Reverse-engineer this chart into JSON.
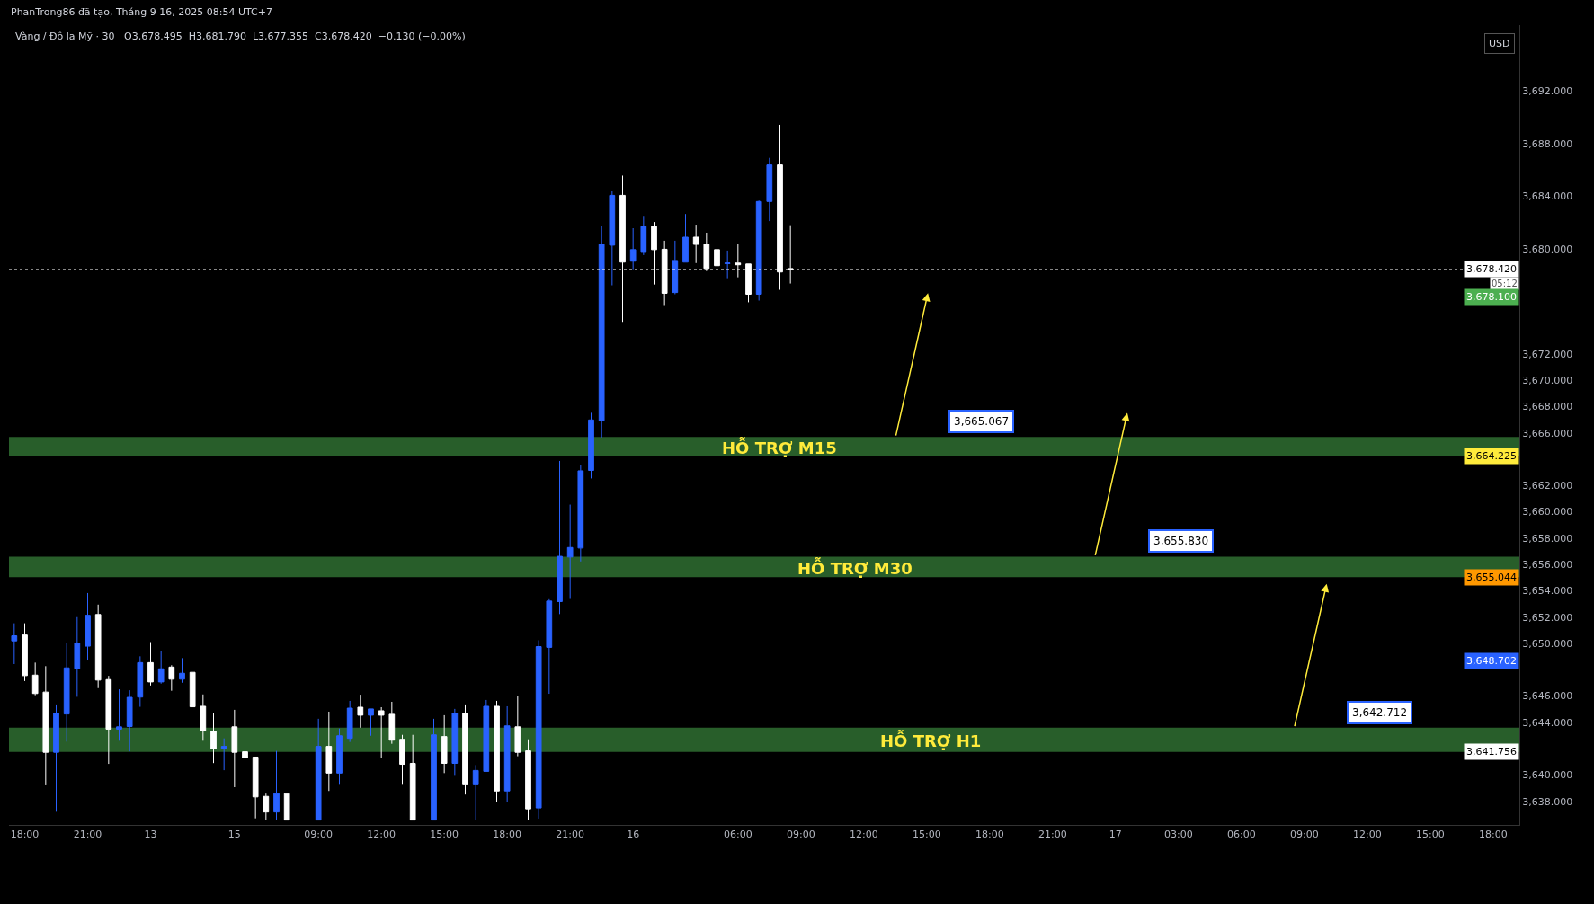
{
  "chart_data": {
    "type": "candlestick",
    "title": "PhanTrong86 đã tạo, Tháng 9 16, 2025 08:54 UTC+7",
    "subtitle": "Vàng / Đô la Mỹ · 30   O3,678.495  H3,681.790  L3,677.355  C3,678.420  −0.130 (−0.00%)",
    "categories": [
      null,
      "18:00",
      null,
      null,
      null,
      null,
      null,
      "21:00",
      null,
      null,
      null,
      null,
      null,
      "13",
      null,
      null,
      null,
      null,
      null,
      null,
      null,
      "15",
      null,
      null,
      null,
      null,
      null,
      null,
      null,
      "09:00",
      null,
      null,
      null,
      null,
      null,
      "12:00",
      null,
      null,
      null,
      null,
      null,
      "15:00",
      null,
      null,
      null,
      null,
      null,
      "18:00",
      null,
      null,
      null,
      null,
      null,
      "21:00",
      null,
      null,
      null,
      null,
      null,
      "16",
      null,
      null,
      null,
      null,
      null,
      null,
      null,
      null,
      null,
      "06:00",
      null,
      null,
      null,
      null,
      null,
      "09:00",
      null,
      null,
      null,
      null,
      null,
      "12:00",
      null,
      null,
      null,
      null,
      null,
      "15:00",
      null,
      null,
      null,
      null,
      null,
      "18:00",
      null,
      null,
      null,
      null,
      null,
      "21:00",
      null,
      null,
      null,
      null,
      null,
      "17",
      null,
      null,
      null,
      null,
      null,
      "03:00",
      null,
      null,
      null,
      null,
      null,
      "06:00",
      null,
      null,
      null,
      null,
      null,
      "09:00",
      null,
      null,
      null,
      null,
      null,
      "12:00",
      null,
      null,
      null,
      null,
      null,
      "15:00",
      null,
      null,
      null,
      null,
      null,
      "18:00",
      null,
      null
    ],
    "ohlc": [
      [
        3650.19,
        3651.53,
        3648.43,
        3650.58
      ],
      [
        3650.64,
        3651.53,
        3647.14,
        3647.55
      ],
      [
        3647.59,
        3648.54,
        3646.06,
        3646.19
      ],
      [
        3646.3,
        3648.27,
        3639.21,
        3641.72
      ],
      [
        3641.72,
        3645.36,
        3637.2,
        3644.68
      ],
      [
        3644.63,
        3650.03,
        3642.53,
        3648.14
      ],
      [
        3648.09,
        3652.0,
        3645.94,
        3650.03
      ],
      [
        3649.79,
        3653.83,
        3648.7,
        3652.14
      ],
      [
        3652.2,
        3652.95,
        3646.6,
        3647.21
      ],
      [
        3647.25,
        3647.53,
        3640.84,
        3643.48
      ],
      [
        3643.48,
        3646.51,
        3642.6,
        3643.66
      ],
      [
        3643.68,
        3646.44,
        3641.79,
        3645.9
      ],
      [
        3645.92,
        3649.02,
        3645.18,
        3648.54
      ],
      [
        3648.54,
        3650.1,
        3646.8,
        3647.07
      ],
      [
        3647.07,
        3649.42,
        3646.94,
        3648.07
      ],
      [
        3648.2,
        3648.34,
        3646.4,
        3647.28
      ],
      [
        3647.28,
        3648.88,
        3647.01,
        3647.73
      ],
      [
        3647.8,
        3647.8,
        3645.18,
        3645.18
      ],
      [
        3645.22,
        3646.12,
        3642.6,
        3643.35
      ],
      [
        3643.32,
        3644.68,
        3640.9,
        3641.99
      ],
      [
        3641.99,
        3642.78,
        3640.36,
        3642.17
      ],
      [
        3643.66,
        3644.95,
        3639.07,
        3641.72
      ],
      [
        3641.76,
        3641.97,
        3639.21,
        3641.31
      ],
      [
        3641.36,
        3641.36,
        3636.7,
        3638.33
      ],
      [
        3638.37,
        3638.58,
        3636.57,
        3637.18
      ],
      [
        3637.18,
        3641.83,
        3636.57,
        3638.58
      ],
      [
        3638.58,
        3638.58,
        3636.57,
        3636.57
      ],
      null,
      null,
      [
        3636.57,
        3644.27,
        3636.57,
        3642.17
      ],
      [
        3642.17,
        3644.81,
        3638.78,
        3640.14
      ],
      [
        3640.14,
        3643.53,
        3639.25,
        3642.98
      ],
      [
        3642.78,
        3645.63,
        3642.51,
        3645.08
      ],
      [
        3645.15,
        3646.1,
        3643.59,
        3644.54
      ],
      [
        3644.54,
        3645.02,
        3642.98,
        3645.02
      ],
      [
        3644.88,
        3645.15,
        3641.29,
        3644.54
      ],
      [
        3644.61,
        3645.56,
        3642.37,
        3642.64
      ],
      [
        3642.71,
        3643.05,
        3639.25,
        3640.81
      ],
      [
        3640.88,
        3643.05,
        3636.57,
        3636.57
      ],
      null,
      [
        3636.57,
        3644.27,
        3636.57,
        3643.05
      ],
      [
        3642.92,
        3644.54,
        3640.14,
        3640.88
      ],
      [
        3640.88,
        3645.02,
        3639.93,
        3644.68
      ],
      [
        3644.68,
        3645.36,
        3638.51,
        3639.25
      ],
      [
        3639.25,
        3640.75,
        3636.57,
        3640.34
      ],
      [
        3640.27,
        3645.7,
        3640.27,
        3645.22
      ],
      [
        3645.22,
        3645.63,
        3637.97,
        3638.78
      ],
      [
        3638.78,
        3645.22,
        3637.97,
        3643.73
      ],
      [
        3643.66,
        3646.03,
        3641.42,
        3641.72
      ],
      [
        3641.83,
        3642.71,
        3636.57,
        3637.42
      ],
      [
        3637.49,
        3650.24,
        3636.68,
        3649.76
      ],
      [
        3649.7,
        3653.36,
        3646.17,
        3653.22
      ],
      [
        3653.18,
        3663.87,
        3652.23,
        3656.62
      ],
      [
        3656.57,
        3660.55,
        3653.38,
        3657.29
      ],
      [
        3657.25,
        3663.53,
        3656.23,
        3663.12
      ],
      [
        3663.15,
        3667.53,
        3662.54,
        3666.99
      ],
      [
        3666.94,
        3681.76,
        3665.65,
        3680.33
      ],
      [
        3680.27,
        3684.4,
        3677.22,
        3684.06
      ],
      [
        3684.06,
        3685.56,
        3674.44,
        3678.98
      ],
      [
        3679.05,
        3681.56,
        3678.44,
        3679.93
      ],
      [
        3679.79,
        3682.5,
        3679.52,
        3681.69
      ],
      [
        3681.69,
        3682.03,
        3677.28,
        3679.93
      ],
      [
        3679.96,
        3680.61,
        3675.72,
        3676.61
      ],
      [
        3676.67,
        3680.61,
        3676.54,
        3679.11
      ],
      [
        3678.98,
        3682.64,
        3678.98,
        3680.88
      ],
      [
        3680.88,
        3681.83,
        3678.91,
        3680.33
      ],
      [
        3680.33,
        3681.22,
        3678.3,
        3678.5
      ],
      [
        3679.93,
        3680.33,
        3676.27,
        3678.71
      ],
      [
        3678.87,
        3679.86,
        3677.76,
        3678.91
      ],
      [
        3678.91,
        3680.4,
        3677.83,
        3678.78
      ],
      [
        3678.84,
        3678.84,
        3675.93,
        3676.54
      ],
      [
        3676.54,
        3683.66,
        3676.06,
        3683.59
      ],
      [
        3683.59,
        3686.91,
        3682.1,
        3686.37
      ],
      [
        3686.37,
        3689.42,
        3676.88,
        3678.23
      ],
      [
        3678.495,
        3681.79,
        3677.355,
        3678.42
      ],
      null,
      null,
      null,
      null,
      null,
      null,
      null,
      null,
      null,
      null,
      null,
      null,
      null,
      null,
      null,
      null,
      null,
      null,
      null,
      null,
      null,
      null,
      null,
      null,
      null,
      null,
      null,
      null,
      null,
      null,
      null,
      null,
      null,
      null,
      null,
      null,
      null,
      null,
      null,
      null,
      null,
      null,
      null,
      null,
      null,
      null,
      null,
      null,
      null,
      null,
      null,
      null,
      null,
      null,
      null,
      null,
      null,
      null,
      null,
      null,
      null,
      null,
      null,
      null,
      null,
      null,
      null,
      null,
      null
    ],
    "colors": [
      "#2962ff",
      "#ffffff",
      "#ffffff",
      "#ffffff",
      "#2962ff",
      "#2962ff",
      "#2962ff",
      "#2962ff",
      "#ffffff",
      "#ffffff",
      "#2962ff",
      "#2962ff",
      "#2962ff",
      "#ffffff",
      "#2962ff",
      "#ffffff",
      "#2962ff",
      "#ffffff",
      "#ffffff",
      "#ffffff",
      "#2962ff",
      "#ffffff",
      "#ffffff",
      "#ffffff",
      "#ffffff",
      "#2962ff",
      "#ffffff",
      null,
      null,
      "#2962ff",
      "#ffffff",
      "#2962ff",
      "#2962ff",
      "#ffffff",
      "#2962ff",
      "#ffffff",
      "#ffffff",
      "#ffffff",
      "#ffffff",
      null,
      "#2962ff",
      "#ffffff",
      "#2962ff",
      "#ffffff",
      "#2962ff",
      "#2962ff",
      "#ffffff",
      "#2962ff",
      "#ffffff",
      "#ffffff",
      "#2962ff",
      "#2962ff",
      "#2962ff",
      "#2962ff",
      "#2962ff",
      "#2962ff",
      "#2962ff",
      "#2962ff",
      "#ffffff",
      "#2962ff",
      "#2962ff",
      "#ffffff",
      "#ffffff",
      "#2962ff",
      "#2962ff",
      "#ffffff",
      "#ffffff",
      "#ffffff",
      "#2962ff",
      "#ffffff",
      "#ffffff",
      "#2962ff",
      "#2962ff",
      "#ffffff",
      "#ffffff",
      null,
      null,
      null,
      null,
      null,
      null,
      null,
      null,
      null,
      null,
      null,
      null,
      null,
      null,
      null,
      null,
      null,
      null,
      null,
      null,
      null,
      null,
      null,
      null,
      null,
      null,
      null,
      null,
      null,
      null,
      null,
      null,
      null,
      null,
      null,
      null,
      null,
      null,
      null,
      null,
      null,
      null,
      null,
      null,
      null,
      null,
      null,
      null,
      null,
      null,
      null,
      null,
      null,
      null,
      null,
      null,
      null,
      null,
      null,
      null,
      null,
      null,
      null,
      null,
      null,
      null,
      null,
      null,
      null
    ],
    "ylim": [
      3636.2,
      3697
    ],
    "yticks": [
      {
        "value": 3692,
        "label": "3,692.000"
      },
      {
        "value": 3688,
        "label": "3,688.000"
      },
      {
        "value": 3684,
        "label": "3,684.000"
      },
      {
        "value": 3680,
        "label": "3,680.000"
      },
      {
        "value": 3672,
        "label": "3,672.000"
      },
      {
        "value": 3670,
        "label": "3,670.000"
      },
      {
        "value": 3668,
        "label": "3,668.000"
      },
      {
        "value": 3666,
        "label": "3,666.000"
      },
      {
        "value": 3662,
        "label": "3,662.000"
      },
      {
        "value": 3660,
        "label": "3,660.000"
      },
      {
        "value": 3658,
        "label": "3,658.000"
      },
      {
        "value": 3656,
        "label": "3,656.000"
      },
      {
        "value": 3654,
        "label": "3,654.000"
      },
      {
        "value": 3652,
        "label": "3,652.000"
      },
      {
        "value": 3650,
        "label": "3,650.000"
      },
      {
        "value": 3646,
        "label": "3,646.000"
      },
      {
        "value": 3644,
        "label": "3,644.000"
      },
      {
        "value": 3640,
        "label": "3,640.000"
      },
      {
        "value": 3638,
        "label": "3,638.000"
      }
    ],
    "ref_lines": [
      {
        "axis": "y",
        "value": 3678.42,
        "label": "3,678.420",
        "color": "#ffffff",
        "line_style": "dotted"
      }
    ],
    "bands": [
      {
        "axis": "y",
        "from": 3664.225,
        "to": 3665.7,
        "label": "HỖ TRỢ M15",
        "color": "#285e2a"
      },
      {
        "axis": "y",
        "from": 3655.044,
        "to": 3656.6,
        "label": "HỖ TRỢ M30",
        "color": "#285e2a"
      },
      {
        "axis": "y",
        "from": 3641.756,
        "to": 3643.6,
        "label": "HỖ TRỢ H1",
        "color": "#285e2a"
      }
    ],
    "annotations": [
      "USD",
      "05:12",
      "3,665.067",
      "3,655.830",
      "3,642.712",
      "3,648.702",
      {
        "text": "3,678.100",
        "y": 3678.1
      },
      {
        "text": "3,664.225",
        "y": 3664.225
      },
      {
        "text": "3,655.044",
        "y": 3655.044
      },
      {
        "text": "3,641.756",
        "y": 3641.756
      }
    ],
    "grid": false
  }
}
